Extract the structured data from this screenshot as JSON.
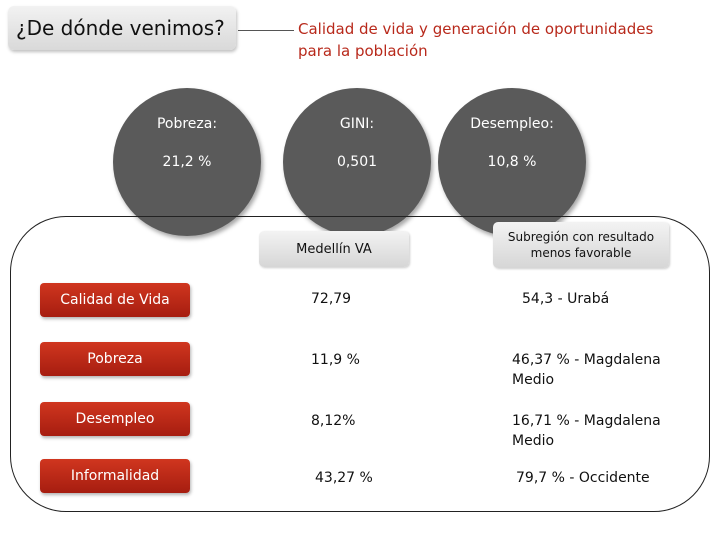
{
  "header": {
    "title": "¿De dónde venimos?",
    "subtitle": "Calidad de vida y generación de oportunidades para la población"
  },
  "indicators": [
    {
      "label": "Pobreza:",
      "value": "21,2 %"
    },
    {
      "label": "GINI:",
      "value": "0,501"
    },
    {
      "label": "Desempleo:",
      "value": "10,8 %"
    }
  ],
  "table": {
    "col_medellin": "Medellín VA",
    "col_subregion": "Subregión con resultado menos favorable",
    "rows": [
      {
        "label": "Calidad de Vida",
        "medellin": "72,79",
        "subregion": "54,3 - Urabá"
      },
      {
        "label": "Pobreza",
        "medellin": "11,9 %",
        "subregion": "46,37 % - Magdalena Medio"
      },
      {
        "label": "Desempleo",
        "medellin": "8,12%",
        "subregion": "16,71 % - Magdalena Medio"
      },
      {
        "label": "Informalidad",
        "medellin": "43,27 %",
        "subregion": "79,7 % - Occidente"
      }
    ]
  },
  "colors": {
    "accent": "#b8291b",
    "circle": "#5a5a5a"
  }
}
